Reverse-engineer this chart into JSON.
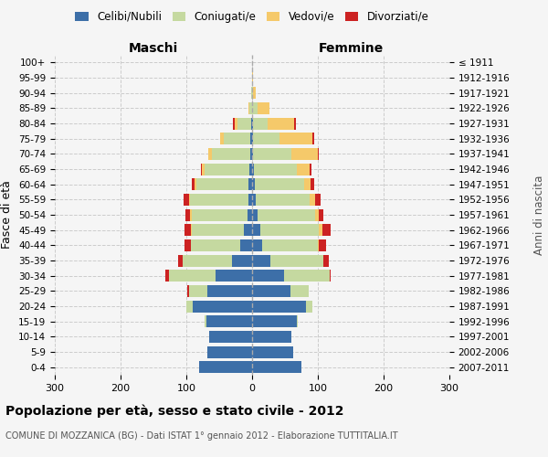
{
  "age_groups": [
    "0-4",
    "5-9",
    "10-14",
    "15-19",
    "20-24",
    "25-29",
    "30-34",
    "35-39",
    "40-44",
    "45-49",
    "50-54",
    "55-59",
    "60-64",
    "65-69",
    "70-74",
    "75-79",
    "80-84",
    "85-89",
    "90-94",
    "95-99",
    "100+"
  ],
  "birth_years": [
    "2007-2011",
    "2002-2006",
    "1997-2001",
    "1992-1996",
    "1987-1991",
    "1982-1986",
    "1977-1981",
    "1972-1976",
    "1967-1971",
    "1962-1966",
    "1957-1961",
    "1952-1956",
    "1947-1951",
    "1942-1946",
    "1937-1941",
    "1932-1936",
    "1927-1931",
    "1922-1926",
    "1917-1921",
    "1912-1916",
    "≤ 1911"
  ],
  "males": {
    "celibi": [
      80,
      68,
      65,
      70,
      90,
      68,
      55,
      30,
      18,
      12,
      7,
      6,
      5,
      4,
      3,
      3,
      2,
      0,
      0,
      0,
      0
    ],
    "coniugati": [
      0,
      0,
      0,
      2,
      10,
      28,
      72,
      75,
      75,
      80,
      85,
      88,
      80,
      68,
      58,
      40,
      20,
      4,
      1,
      0,
      0
    ],
    "vedovi": [
      0,
      0,
      0,
      0,
      0,
      0,
      0,
      0,
      0,
      1,
      2,
      2,
      2,
      4,
      5,
      6,
      5,
      2,
      0,
      0,
      0
    ],
    "divorziati": [
      0,
      0,
      0,
      0,
      0,
      2,
      5,
      8,
      10,
      10,
      8,
      8,
      5,
      2,
      1,
      0,
      2,
      0,
      0,
      0,
      0
    ]
  },
  "females": {
    "nubili": [
      75,
      62,
      60,
      68,
      82,
      58,
      48,
      28,
      15,
      12,
      8,
      6,
      4,
      3,
      2,
      2,
      2,
      0,
      0,
      0,
      0
    ],
    "coniugate": [
      0,
      0,
      0,
      2,
      10,
      28,
      70,
      80,
      85,
      90,
      88,
      82,
      75,
      65,
      58,
      40,
      22,
      8,
      2,
      0,
      0
    ],
    "vedove": [
      0,
      0,
      0,
      0,
      0,
      0,
      0,
      0,
      2,
      5,
      5,
      8,
      10,
      20,
      40,
      50,
      40,
      18,
      4,
      1,
      0
    ],
    "divorziate": [
      0,
      0,
      0,
      0,
      0,
      0,
      2,
      8,
      10,
      12,
      8,
      8,
      5,
      2,
      2,
      2,
      2,
      0,
      0,
      0,
      0
    ]
  },
  "colors": {
    "celibi": "#3d6fa8",
    "coniugati": "#c5d9a0",
    "vedovi": "#f5c96a",
    "divorziati": "#cc2222"
  },
  "xlim": 300,
  "title": "Popolazione per età, sesso e stato civile - 2012",
  "subtitle": "COMUNE DI MOZZANICA (BG) - Dati ISTAT 1° gennaio 2012 - Elaborazione TUTTITALIA.IT",
  "ylabel_left": "Fasce di età",
  "ylabel_right": "Anni di nascita",
  "xlabel_left": "Maschi",
  "xlabel_right": "Femmine",
  "legend_labels": [
    "Celibi/Nubili",
    "Coniugati/e",
    "Vedovi/e",
    "Divorziati/e"
  ],
  "bg_color": "#f5f5f5",
  "legend_marker_colors": [
    "#3d6fa8",
    "#c5d9a0",
    "#f5c96a",
    "#cc2222"
  ]
}
